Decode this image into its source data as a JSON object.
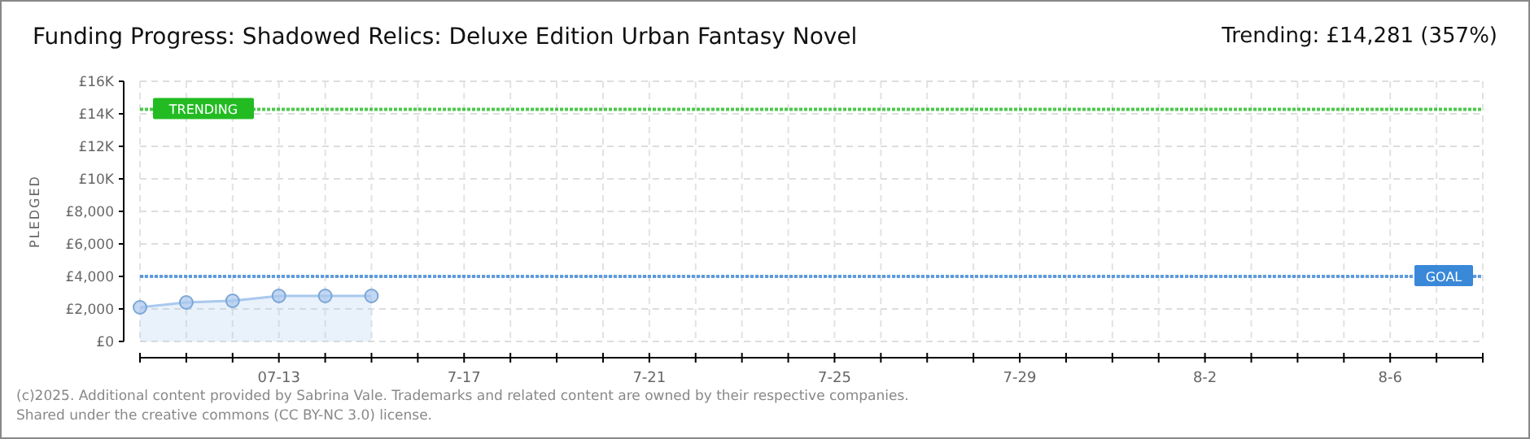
{
  "chart_data": {
    "type": "area",
    "title": "Funding Progress: Shadowed Relics: Deluxe Edition Urban Fantasy Novel",
    "subtitle": "Trending: £14,281 (357%)",
    "ylabel": "PLEDGED",
    "x": [
      "--07-10",
      "--07-11",
      "--07-12",
      "--07-13",
      "--07-14",
      "--07-15"
    ],
    "series": [
      {
        "color": "#a9c8ee",
        "values": [
          2100,
          2400,
          2500,
          2800,
          2800,
          2800
        ]
      }
    ],
    "xlim": [
      "--07-10",
      "--08-08"
    ],
    "xticks": [
      {
        "value": "--07-10",
        "label": null
      },
      {
        "value": "--07-11",
        "label": null
      },
      {
        "value": "--07-12",
        "label": null
      },
      {
        "value": "--07-13",
        "label": "07-13"
      },
      {
        "value": "--07-14",
        "label": null
      },
      {
        "value": "--07-15",
        "label": null
      },
      {
        "value": "--07-16",
        "label": null
      },
      {
        "value": "--07-17",
        "label": "7-17"
      },
      {
        "value": "--07-18",
        "label": null
      },
      {
        "value": "--07-19",
        "label": null
      },
      {
        "value": "--07-20",
        "label": null
      },
      {
        "value": "--07-21",
        "label": "7-21"
      },
      {
        "value": "--07-22",
        "label": null
      },
      {
        "value": "--07-23",
        "label": null
      },
      {
        "value": "--07-24",
        "label": null
      },
      {
        "value": "--07-25",
        "label": "7-25"
      },
      {
        "value": "--07-26",
        "label": null
      },
      {
        "value": "--07-27",
        "label": null
      },
      {
        "value": "--07-28",
        "label": null
      },
      {
        "value": "--07-29",
        "label": "7-29"
      },
      {
        "value": "--07-30",
        "label": null
      },
      {
        "value": "--07-31",
        "label": null
      },
      {
        "value": "--08-01",
        "label": null
      },
      {
        "value": "--08-02",
        "label": "8-2"
      },
      {
        "value": "--08-03",
        "label": null
      },
      {
        "value": "--08-04",
        "label": null
      },
      {
        "value": "--08-05",
        "label": null
      },
      {
        "value": "--08-06",
        "label": "8-6"
      },
      {
        "value": "--08-07",
        "label": null
      },
      {
        "value": "--08-08",
        "label": null
      }
    ],
    "ylim": [
      0,
      16000
    ],
    "yticks": [
      {
        "value": 0,
        "label": "£0"
      },
      {
        "value": 2000,
        "label": "£2,000"
      },
      {
        "value": 4000,
        "label": "£4,000"
      },
      {
        "value": 6000,
        "label": "£6,000"
      },
      {
        "value": 8000,
        "label": "£8,000"
      },
      {
        "value": 10000,
        "label": "£10K"
      },
      {
        "value": 12000,
        "label": "£12K"
      },
      {
        "value": 14000,
        "label": "£14K"
      },
      {
        "value": 16000,
        "label": "£16K"
      }
    ],
    "grid": true,
    "marker": "circle",
    "ref_lines": [
      {
        "axis": "y",
        "value": 14281,
        "label": "TRENDING",
        "color": "#22bb22"
      },
      {
        "axis": "y",
        "value": 4000,
        "label": "GOAL",
        "color": "#3a88d8"
      }
    ],
    "annotations": [
      "(c)2025. Additional content provided by Sabrina Vale. Trademarks and related content are owned by their respective companies.",
      "Shared under the creative commons (CC BY-NC 3.0) license."
    ]
  }
}
